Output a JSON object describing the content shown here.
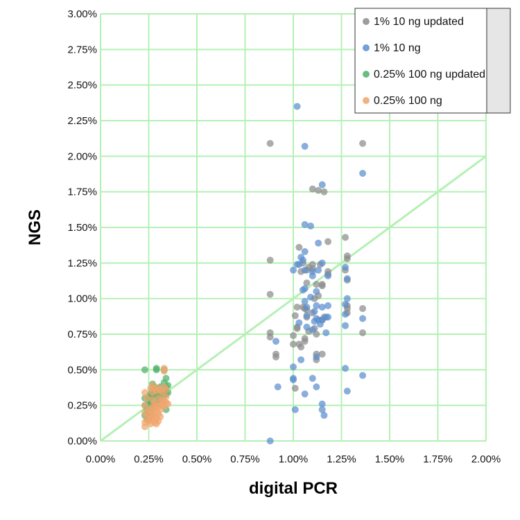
{
  "chart_data": {
    "type": "scatter",
    "title": "",
    "xlabel": "digital PCR",
    "ylabel": "NGS",
    "xlim": [
      0,
      0.02
    ],
    "ylim": [
      0,
      0.03
    ],
    "x_ticks": [
      "0.00%",
      "0.25%",
      "0.50%",
      "0.75%",
      "1.00%",
      "1.25%",
      "1.50%",
      "1.75%",
      "2.00%"
    ],
    "y_ticks": [
      "0.00%",
      "0.25%",
      "0.50%",
      "0.75%",
      "1.00%",
      "1.25%",
      "1.50%",
      "1.75%",
      "2.00%",
      "2.25%",
      "2.50%",
      "2.75%",
      "3.00%"
    ],
    "grid": true,
    "legend_position": "top-right",
    "reference_line": {
      "name": "y = x",
      "color": "#b4f0b4",
      "x": [
        0,
        0.02
      ],
      "y": [
        0,
        0.02
      ]
    },
    "series": [
      {
        "name": "1% 10 ng updated",
        "color": "#8c8c8c",
        "points": [
          [
            0.0088,
            0.0209
          ],
          [
            0.0088,
            0.0127
          ],
          [
            0.0088,
            0.0103
          ],
          [
            0.0088,
            0.0076
          ],
          [
            0.0088,
            0.0073
          ],
          [
            0.0091,
            0.0061
          ],
          [
            0.0091,
            0.0059
          ],
          [
            0.01,
            0.0068
          ],
          [
            0.01,
            0.0074
          ],
          [
            0.0101,
            0.0088
          ],
          [
            0.0101,
            0.0037
          ],
          [
            0.0102,
            0.0094
          ],
          [
            0.0102,
            0.008
          ],
          [
            0.0102,
            0.0079
          ],
          [
            0.0103,
            0.0068
          ],
          [
            0.0103,
            0.0136
          ],
          [
            0.0104,
            0.0119
          ],
          [
            0.0104,
            0.0066
          ],
          [
            0.0105,
            0.0094
          ],
          [
            0.0105,
            0.0125
          ],
          [
            0.0106,
            0.0093
          ],
          [
            0.0106,
            0.0072
          ],
          [
            0.0106,
            0.007
          ],
          [
            0.0107,
            0.012
          ],
          [
            0.0107,
            0.0111
          ],
          [
            0.0107,
            0.0092
          ],
          [
            0.0107,
            0.0087
          ],
          [
            0.0108,
            0.0077
          ],
          [
            0.0108,
            0.0122
          ],
          [
            0.011,
            0.0177
          ],
          [
            0.011,
            0.0124
          ],
          [
            0.011,
            0.0121
          ],
          [
            0.011,
            0.009
          ],
          [
            0.0111,
            0.01
          ],
          [
            0.0111,
            0.0079
          ],
          [
            0.0112,
            0.011
          ],
          [
            0.0112,
            0.0075
          ],
          [
            0.0112,
            0.0061
          ],
          [
            0.0112,
            0.0057
          ],
          [
            0.0113,
            0.0176
          ],
          [
            0.0113,
            0.0102
          ],
          [
            0.0114,
            0.0124
          ],
          [
            0.0115,
            0.011
          ],
          [
            0.0115,
            0.0109
          ],
          [
            0.0115,
            0.0085
          ],
          [
            0.0115,
            0.0061
          ],
          [
            0.0116,
            0.0175
          ],
          [
            0.0116,
            0.0087
          ],
          [
            0.0118,
            0.014
          ],
          [
            0.0118,
            0.0119
          ],
          [
            0.0118,
            0.0117
          ],
          [
            0.0127,
            0.0143
          ],
          [
            0.0127,
            0.012
          ],
          [
            0.0128,
            0.013
          ],
          [
            0.0128,
            0.0128
          ],
          [
            0.0128,
            0.0113
          ],
          [
            0.0128,
            0.0095
          ],
          [
            0.0128,
            0.0093
          ],
          [
            0.0128,
            0.009
          ],
          [
            0.0136,
            0.0209
          ],
          [
            0.0136,
            0.0093
          ],
          [
            0.0136,
            0.0076
          ]
        ]
      },
      {
        "name": "1% 10 ng",
        "color": "#5b8fcf",
        "points": [
          [
            0.0088,
            0.0
          ],
          [
            0.0091,
            0.007
          ],
          [
            0.0092,
            0.0038
          ],
          [
            0.01,
            0.012
          ],
          [
            0.01,
            0.0052
          ],
          [
            0.01,
            0.0044
          ],
          [
            0.01,
            0.0043
          ],
          [
            0.0101,
            0.0022
          ],
          [
            0.0102,
            0.0235
          ],
          [
            0.0102,
            0.0124
          ],
          [
            0.0103,
            0.0124
          ],
          [
            0.0103,
            0.0083
          ],
          [
            0.0104,
            0.0129
          ],
          [
            0.0104,
            0.0057
          ],
          [
            0.0105,
            0.0127
          ],
          [
            0.0105,
            0.0106
          ],
          [
            0.0106,
            0.0207
          ],
          [
            0.0106,
            0.0152
          ],
          [
            0.0106,
            0.0133
          ],
          [
            0.0106,
            0.012
          ],
          [
            0.0106,
            0.0107
          ],
          [
            0.0106,
            0.0098
          ],
          [
            0.0106,
            0.0033
          ],
          [
            0.0107,
            0.0094
          ],
          [
            0.0107,
            0.0088
          ],
          [
            0.0107,
            0.008
          ],
          [
            0.0109,
            0.0151
          ],
          [
            0.0109,
            0.0101
          ],
          [
            0.011,
            0.0119
          ],
          [
            0.011,
            0.0116
          ],
          [
            0.011,
            0.0078
          ],
          [
            0.011,
            0.0044
          ],
          [
            0.0111,
            0.0091
          ],
          [
            0.0111,
            0.0084
          ],
          [
            0.0112,
            0.0105
          ],
          [
            0.0112,
            0.0095
          ],
          [
            0.0112,
            0.0086
          ],
          [
            0.0112,
            0.0059
          ],
          [
            0.0112,
            0.0038
          ],
          [
            0.0113,
            0.0139
          ],
          [
            0.0113,
            0.012
          ],
          [
            0.0113,
            0.0085
          ],
          [
            0.0114,
            0.0082
          ],
          [
            0.0115,
            0.018
          ],
          [
            0.0115,
            0.0125
          ],
          [
            0.0115,
            0.0094
          ],
          [
            0.0115,
            0.0085
          ],
          [
            0.0115,
            0.0026
          ],
          [
            0.0115,
            0.0022
          ],
          [
            0.0116,
            0.0018
          ],
          [
            0.0117,
            0.0087
          ],
          [
            0.0117,
            0.0076
          ],
          [
            0.0118,
            0.0116
          ],
          [
            0.0118,
            0.0095
          ],
          [
            0.0118,
            0.0087
          ],
          [
            0.0127,
            0.0122
          ],
          [
            0.0127,
            0.0096
          ],
          [
            0.0127,
            0.0089
          ],
          [
            0.0127,
            0.0081
          ],
          [
            0.0127,
            0.0051
          ],
          [
            0.0128,
            0.0114
          ],
          [
            0.0128,
            0.01
          ],
          [
            0.0128,
            0.0035
          ],
          [
            0.0136,
            0.0188
          ],
          [
            0.0136,
            0.0086
          ],
          [
            0.0136,
            0.0046
          ]
        ]
      },
      {
        "name": "0.25% 100 ng updated",
        "color": "#4db36b",
        "points": [
          [
            0.0023,
            0.005
          ],
          [
            0.0023,
            0.003
          ],
          [
            0.0023,
            0.0025
          ],
          [
            0.0023,
            0.0018
          ],
          [
            0.0024,
            0.0022
          ],
          [
            0.0024,
            0.0015
          ],
          [
            0.0025,
            0.0031
          ],
          [
            0.0025,
            0.0028
          ],
          [
            0.0025,
            0.002
          ],
          [
            0.0025,
            0.0016
          ],
          [
            0.0026,
            0.0033
          ],
          [
            0.0026,
            0.0029
          ],
          [
            0.0026,
            0.0027
          ],
          [
            0.0026,
            0.0024
          ],
          [
            0.0026,
            0.0018
          ],
          [
            0.0027,
            0.004
          ],
          [
            0.0027,
            0.0036
          ],
          [
            0.0027,
            0.0032
          ],
          [
            0.0027,
            0.003
          ],
          [
            0.0027,
            0.0028
          ],
          [
            0.0027,
            0.0026
          ],
          [
            0.0027,
            0.0022
          ],
          [
            0.0028,
            0.0038
          ],
          [
            0.0028,
            0.0033
          ],
          [
            0.0028,
            0.0031
          ],
          [
            0.0028,
            0.0029
          ],
          [
            0.0028,
            0.0027
          ],
          [
            0.0028,
            0.0025
          ],
          [
            0.0029,
            0.0051
          ],
          [
            0.0029,
            0.005
          ],
          [
            0.0029,
            0.0035
          ],
          [
            0.0029,
            0.0032
          ],
          [
            0.0029,
            0.003
          ],
          [
            0.0029,
            0.0028
          ],
          [
            0.0029,
            0.0026
          ],
          [
            0.003,
            0.0037
          ],
          [
            0.003,
            0.0034
          ],
          [
            0.003,
            0.0031
          ],
          [
            0.003,
            0.0029
          ],
          [
            0.0031,
            0.0038
          ],
          [
            0.0031,
            0.0035
          ],
          [
            0.0031,
            0.0032
          ],
          [
            0.0031,
            0.0029
          ],
          [
            0.0032,
            0.0036
          ],
          [
            0.0032,
            0.0033
          ],
          [
            0.0032,
            0.003
          ],
          [
            0.0033,
            0.005
          ],
          [
            0.0033,
            0.0041
          ],
          [
            0.0033,
            0.0036
          ],
          [
            0.0033,
            0.0032
          ],
          [
            0.0034,
            0.0044
          ],
          [
            0.0034,
            0.0038
          ],
          [
            0.0034,
            0.0033
          ],
          [
            0.0035,
            0.0039
          ],
          [
            0.0035,
            0.0034
          ],
          [
            0.0034,
            0.0022
          ]
        ]
      },
      {
        "name": "0.25% 100 ng",
        "color": "#f0a56e",
        "points": [
          [
            0.0023,
            0.0034
          ],
          [
            0.0023,
            0.0025
          ],
          [
            0.0023,
            0.002
          ],
          [
            0.0023,
            0.0013
          ],
          [
            0.0023,
            0.001
          ],
          [
            0.0024,
            0.003
          ],
          [
            0.0024,
            0.0016
          ],
          [
            0.0025,
            0.0022
          ],
          [
            0.0025,
            0.0018
          ],
          [
            0.0025,
            0.0014
          ],
          [
            0.0026,
            0.0037
          ],
          [
            0.0026,
            0.0021
          ],
          [
            0.0026,
            0.0016
          ],
          [
            0.0026,
            0.0012
          ],
          [
            0.0027,
            0.0039
          ],
          [
            0.0027,
            0.0034
          ],
          [
            0.0027,
            0.0029
          ],
          [
            0.0027,
            0.0024
          ],
          [
            0.0027,
            0.0019
          ],
          [
            0.0027,
            0.0015
          ],
          [
            0.0028,
            0.0037
          ],
          [
            0.0028,
            0.0027
          ],
          [
            0.0028,
            0.0023
          ],
          [
            0.0028,
            0.0018
          ],
          [
            0.0028,
            0.0013
          ],
          [
            0.0029,
            0.0035
          ],
          [
            0.0029,
            0.0025
          ],
          [
            0.0029,
            0.0021
          ],
          [
            0.0029,
            0.0016
          ],
          [
            0.0029,
            0.0012
          ],
          [
            0.003,
            0.0037
          ],
          [
            0.003,
            0.003
          ],
          [
            0.003,
            0.0024
          ],
          [
            0.003,
            0.0019
          ],
          [
            0.003,
            0.0014
          ],
          [
            0.0031,
            0.0036
          ],
          [
            0.0031,
            0.0026
          ],
          [
            0.0031,
            0.0022
          ],
          [
            0.0031,
            0.0017
          ],
          [
            0.0032,
            0.0034
          ],
          [
            0.0032,
            0.0029
          ],
          [
            0.0032,
            0.0025
          ],
          [
            0.0033,
            0.0051
          ],
          [
            0.0033,
            0.0049
          ],
          [
            0.0033,
            0.0038
          ],
          [
            0.0033,
            0.0028
          ],
          [
            0.0033,
            0.0024
          ],
          [
            0.0034,
            0.0036
          ],
          [
            0.0034,
            0.0031
          ],
          [
            0.0034,
            0.0027
          ],
          [
            0.0035,
            0.0026
          ]
        ]
      }
    ]
  }
}
